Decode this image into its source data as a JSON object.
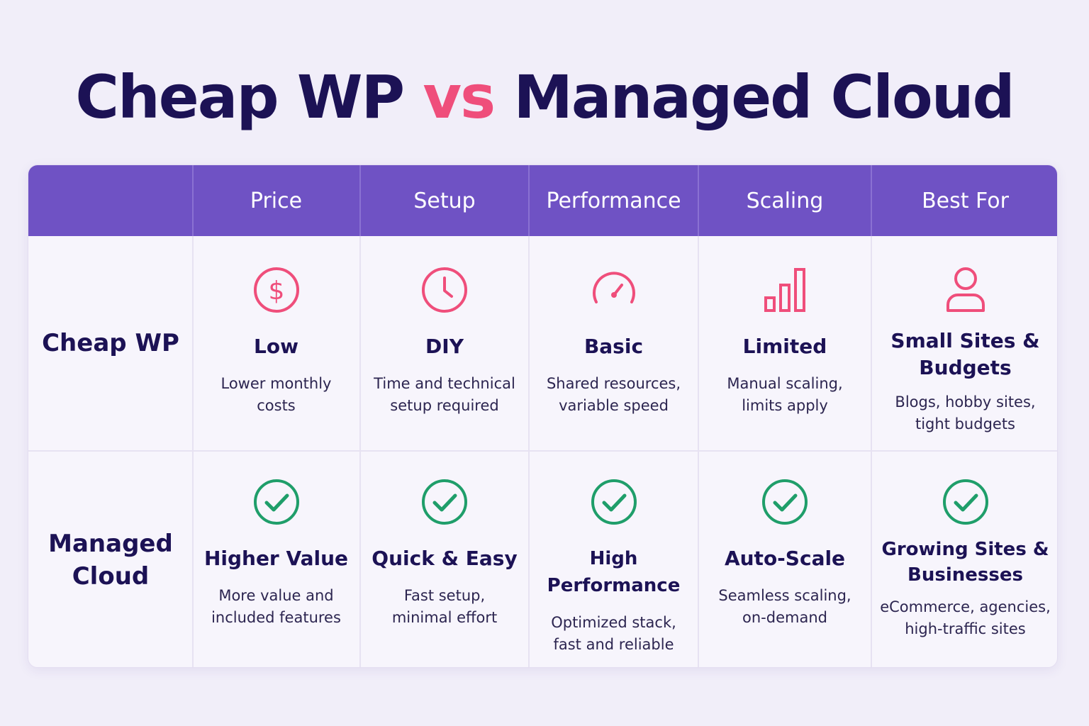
{
  "title": {
    "part1": "Cheap WP",
    "vs": "vs",
    "part2": "Managed Cloud"
  },
  "colors": {
    "accent": "#ef4e7b",
    "header": "#6f52c4",
    "check": "#1f9e6a",
    "text": "#1c1255"
  },
  "columns": [
    "Price",
    "Setup",
    "Performance",
    "Scaling",
    "Best For"
  ],
  "rows": [
    {
      "label": "Cheap WP",
      "cells": [
        {
          "icon": "dollar-icon",
          "title": "Low",
          "desc1": "Lower monthly",
          "desc2": "costs"
        },
        {
          "icon": "clock-icon",
          "title": "DIY",
          "desc1": "Time and technical",
          "desc2": "setup required"
        },
        {
          "icon": "speedometer-icon",
          "title": "Basic",
          "desc1": "Shared resources,",
          "desc2": "variable speed"
        },
        {
          "icon": "bar-chart-icon",
          "title": "Limited",
          "desc1": "Manual scaling,",
          "desc2": "limits apply"
        },
        {
          "icon": "user-icon",
          "title1": "Small Sites &",
          "title2": "Budgets",
          "desc1": "Blogs, hobby sites,",
          "desc2": "tight budgets"
        }
      ]
    },
    {
      "label1": "Managed",
      "label2": "Cloud",
      "cells": [
        {
          "icon": "check-circle-icon",
          "title": "Higher Value",
          "desc1": "More value and",
          "desc2": "included features"
        },
        {
          "icon": "check-circle-icon",
          "title": "Quick & Easy",
          "desc1": "Fast setup,",
          "desc2": "minimal effort"
        },
        {
          "icon": "check-circle-icon",
          "title": "High Performance",
          "desc1": "Optimized stack,",
          "desc2": "fast and reliable"
        },
        {
          "icon": "check-circle-icon",
          "title": "Auto-Scale",
          "desc1": "Seamless scaling,",
          "desc2": "on-demand"
        },
        {
          "icon": "check-circle-icon",
          "title1": "Growing Sites &",
          "title2": "Businesses",
          "desc1": "eCommerce, agencies,",
          "desc2": "high-traffic sites"
        }
      ]
    }
  ]
}
